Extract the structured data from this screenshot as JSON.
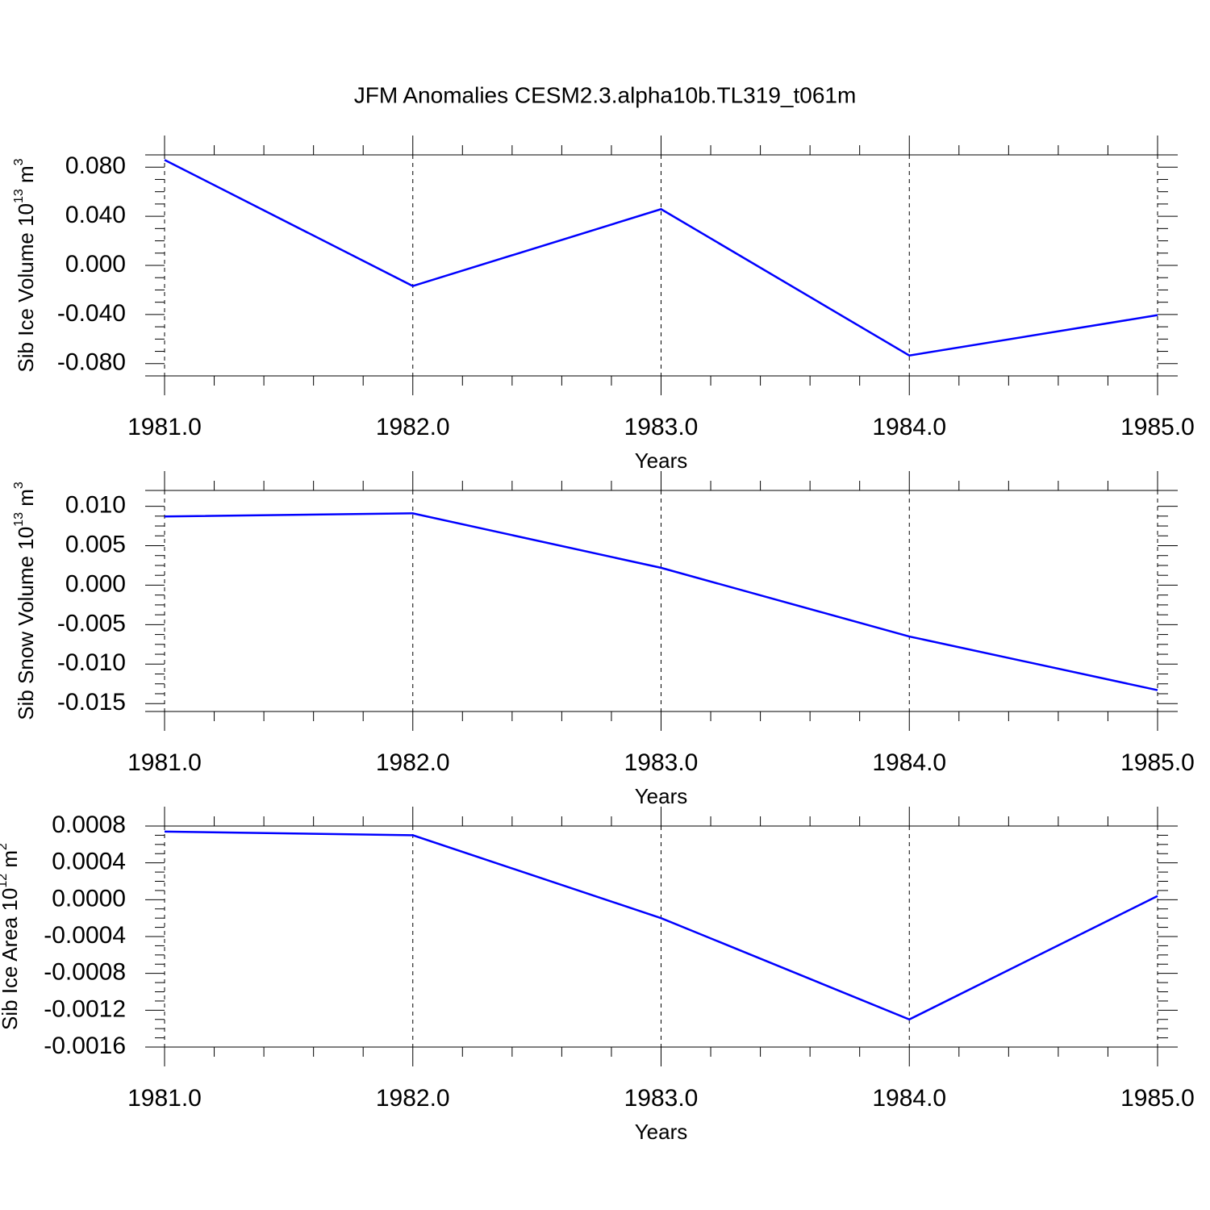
{
  "chart_data": [
    {
      "type": "line",
      "title": "JFM Anomalies CESM2.3.alpha10b.TL319_t061m",
      "x": [
        1981,
        1982,
        1983,
        1984,
        1985
      ],
      "series": [
        {
          "color": "#0000ff",
          "values": [
            0.0859,
            -0.0168,
            0.0458,
            -0.0734,
            -0.0405
          ]
        }
      ],
      "xlim": [
        1981,
        1985
      ],
      "xticks": [
        {
          "value": 1981,
          "label": "1981.0"
        },
        {
          "value": 1982,
          "label": "1982.0"
        },
        {
          "value": 1983,
          "label": "1983.0"
        },
        {
          "value": 1984,
          "label": "1984.0"
        },
        {
          "value": 1985,
          "label": "1985.0"
        }
      ],
      "ylim": [
        -0.09,
        0.09
      ],
      "yticks": [
        {
          "value": -0.08,
          "label": "-0.080"
        },
        {
          "value": -0.04,
          "label": "-0.040"
        },
        {
          "value": 0,
          "label": "0.000"
        },
        {
          "value": 0.04,
          "label": "0.040"
        },
        {
          "value": 0.08,
          "label": "0.080"
        }
      ],
      "xlabel": "Years",
      "ylabel": [
        "Sib Ice Volume 10",
        "13",
        " m",
        "3"
      ],
      "grid": true
    },
    {
      "type": "line",
      "x": [
        1981,
        1982,
        1983,
        1984,
        1985
      ],
      "series": [
        {
          "color": "#0000ff",
          "values": [
            0.0087,
            0.0091,
            0.0022,
            -0.0065,
            -0.0133
          ]
        }
      ],
      "xlim": [
        1981,
        1985
      ],
      "xticks": [
        {
          "value": 1981,
          "label": "1981.0"
        },
        {
          "value": 1982,
          "label": "1982.0"
        },
        {
          "value": 1983,
          "label": "1983.0"
        },
        {
          "value": 1984,
          "label": "1984.0"
        },
        {
          "value": 1985,
          "label": "1985.0"
        }
      ],
      "ylim": [
        -0.016,
        0.012
      ],
      "yticks": [
        {
          "value": -0.015,
          "label": "-0.015"
        },
        {
          "value": -0.01,
          "label": "-0.010"
        },
        {
          "value": -0.005,
          "label": "-0.005"
        },
        {
          "value": 0,
          "label": "0.000"
        },
        {
          "value": 0.005,
          "label": "0.005"
        },
        {
          "value": 0.01,
          "label": "0.010"
        }
      ],
      "xlabel": "Years",
      "ylabel": [
        "Sib Snow Volume 10",
        "13",
        " m",
        "3"
      ],
      "grid": true
    },
    {
      "type": "line",
      "x": [
        1981,
        1982,
        1983,
        1984,
        1985
      ],
      "series": [
        {
          "color": "#0000ff",
          "values": [
            0.00074,
            0.0007,
            -0.0002,
            -0.0013,
            4e-05
          ]
        }
      ],
      "xlim": [
        1981,
        1985
      ],
      "xticks": [
        {
          "value": 1981,
          "label": "1981.0"
        },
        {
          "value": 1982,
          "label": "1982.0"
        },
        {
          "value": 1983,
          "label": "1983.0"
        },
        {
          "value": 1984,
          "label": "1984.0"
        },
        {
          "value": 1985,
          "label": "1985.0"
        }
      ],
      "ylim": [
        -0.0016,
        0.0008
      ],
      "yticks": [
        {
          "value": -0.0016,
          "label": "-0.0016"
        },
        {
          "value": -0.0012,
          "label": "-0.0012"
        },
        {
          "value": -0.0008,
          "label": "-0.0008"
        },
        {
          "value": -0.0004,
          "label": "-0.0004"
        },
        {
          "value": 0,
          "label": "0.0000"
        },
        {
          "value": 0.0004,
          "label": "0.0004"
        },
        {
          "value": 0.0008,
          "label": "0.0008"
        }
      ],
      "xlabel": "Years",
      "ylabel": [
        "Sib Ice Area 10",
        "12",
        " m",
        "2"
      ],
      "grid": true
    }
  ]
}
